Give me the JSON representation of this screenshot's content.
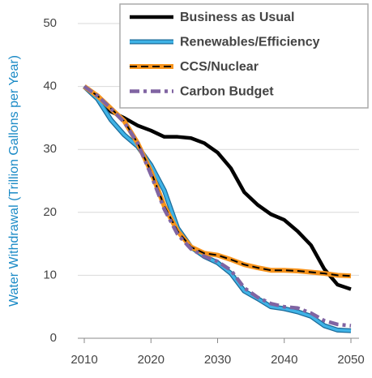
{
  "chart_data": {
    "type": "line",
    "y_label": "Water Withdrawal (Trillion Gallons per Year)",
    "x": [
      2010,
      2012,
      2014,
      2016,
      2018,
      2020,
      2022,
      2024,
      2026,
      2028,
      2030,
      2032,
      2034,
      2036,
      2038,
      2040,
      2042,
      2044,
      2046,
      2048,
      2050
    ],
    "series": [
      {
        "name": "Business as Usual",
        "color": "#000000",
        "style": "solid",
        "values": [
          40,
          38.5,
          36,
          35,
          33.8,
          33,
          32,
          32,
          31.8,
          31,
          29.5,
          27,
          23.2,
          21.2,
          19.7,
          18.8,
          17,
          14.8,
          11,
          8.5,
          7.8
        ]
      },
      {
        "name": "Renewables/Efficiency",
        "color": "#3fb3e6",
        "style": "outlined",
        "values": [
          40,
          38,
          34.7,
          32.3,
          30.5,
          27.5,
          23.5,
          17.5,
          14.5,
          13,
          12,
          10.3,
          7.5,
          6.3,
          5,
          4.7,
          4.2,
          3.5,
          2,
          1.3,
          1.2
        ]
      },
      {
        "name": "CCS/Nuclear",
        "color": "#f7941d",
        "style": "dashed-over",
        "values": [
          40,
          38.5,
          36.5,
          34.5,
          31,
          26.5,
          21,
          17,
          14.5,
          13.5,
          13.2,
          12.5,
          11.7,
          11.2,
          10.8,
          10.8,
          10.7,
          10.5,
          10.3,
          10,
          9.9
        ]
      },
      {
        "name": "Carbon Budget",
        "color": "#8064a2",
        "style": "dashdot",
        "values": [
          40,
          38.5,
          36.5,
          34.3,
          31,
          26,
          20.5,
          16.5,
          14.2,
          13,
          12.2,
          10.8,
          8,
          6.5,
          5.5,
          5,
          4.8,
          4,
          2.8,
          2.2,
          2
        ]
      }
    ],
    "xlim": [
      2010,
      2050
    ],
    "xticks": [
      2010,
      2020,
      2030,
      2040,
      2050
    ],
    "ylim": [
      0,
      50
    ],
    "yticks": [
      0,
      10,
      20,
      30,
      40,
      50
    ],
    "grid": true,
    "legend": "upper right"
  }
}
